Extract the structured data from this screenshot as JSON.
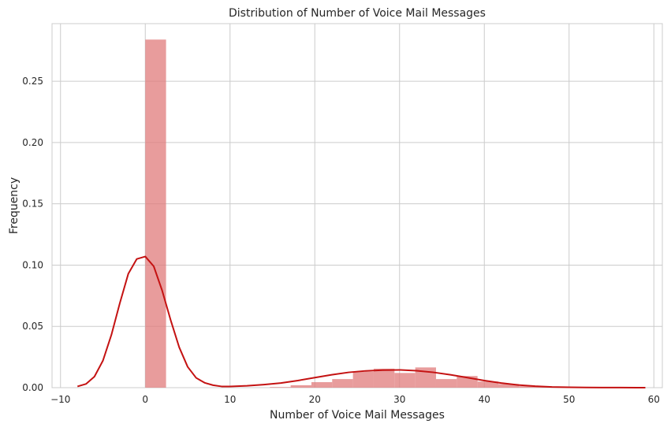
{
  "chart_data": {
    "type": "bar",
    "title": "Distribution of Number of Voice Mail Messages",
    "xlabel": "Number of Voice Mail Messages",
    "ylabel": "Frequency",
    "xlim": [
      -11,
      61
    ],
    "ylim": [
      0,
      0.297
    ],
    "xticks": [
      -10,
      0,
      10,
      20,
      30,
      40,
      50,
      60
    ],
    "yticks": [
      0.0,
      0.05,
      0.1,
      0.15,
      0.2,
      0.25
    ],
    "xtick_labels": [
      "−10",
      "0",
      "10",
      "20",
      "30",
      "40",
      "50",
      "60"
    ],
    "ytick_labels": [
      "0.00",
      "0.05",
      "0.10",
      "0.15",
      "0.20",
      "0.25"
    ],
    "grid": true,
    "histogram": {
      "bin_edges": [
        0,
        2.45,
        4.9,
        7.35,
        9.8,
        12.25,
        14.7,
        17.15,
        19.6,
        22.05,
        24.5,
        26.95,
        29.4,
        31.85,
        34.3,
        36.75,
        39.2,
        41.65,
        44.1,
        46.55,
        49.0,
        51.45,
        53.9,
        56.35,
        58.8
      ],
      "values": [
        0.284,
        0,
        0,
        0,
        0,
        0,
        0.0005,
        0.002,
        0.0045,
        0.007,
        0.013,
        0.0155,
        0.012,
        0.0165,
        0.007,
        0.0095,
        0.005,
        0.003,
        0.0012,
        0.0005,
        0.0003,
        0.0002,
        0.0001,
        0.0001
      ],
      "color": "#e07b7b"
    },
    "kde": {
      "x": [
        -8,
        -7,
        -6,
        -5,
        -4,
        -3,
        -2,
        -1,
        0,
        1,
        2,
        3,
        4,
        5,
        6,
        7,
        8,
        9,
        10,
        12,
        14,
        16,
        18,
        20,
        22,
        24,
        26,
        28,
        30,
        32,
        34,
        36,
        38,
        40,
        42,
        44,
        46,
        48,
        50,
        52,
        54,
        56,
        58,
        59
      ],
      "y": [
        0.001,
        0.003,
        0.009,
        0.022,
        0.043,
        0.069,
        0.093,
        0.105,
        0.107,
        0.099,
        0.079,
        0.055,
        0.033,
        0.017,
        0.008,
        0.004,
        0.002,
        0.001,
        0.001,
        0.0015,
        0.0025,
        0.0038,
        0.0058,
        0.0082,
        0.0105,
        0.0125,
        0.0137,
        0.0143,
        0.0145,
        0.0138,
        0.0125,
        0.0105,
        0.0082,
        0.0058,
        0.0038,
        0.0022,
        0.0012,
        0.0006,
        0.0003,
        0.0002,
        0.0001,
        0.0001,
        0.0,
        0.0
      ],
      "color": "#c41212"
    }
  }
}
